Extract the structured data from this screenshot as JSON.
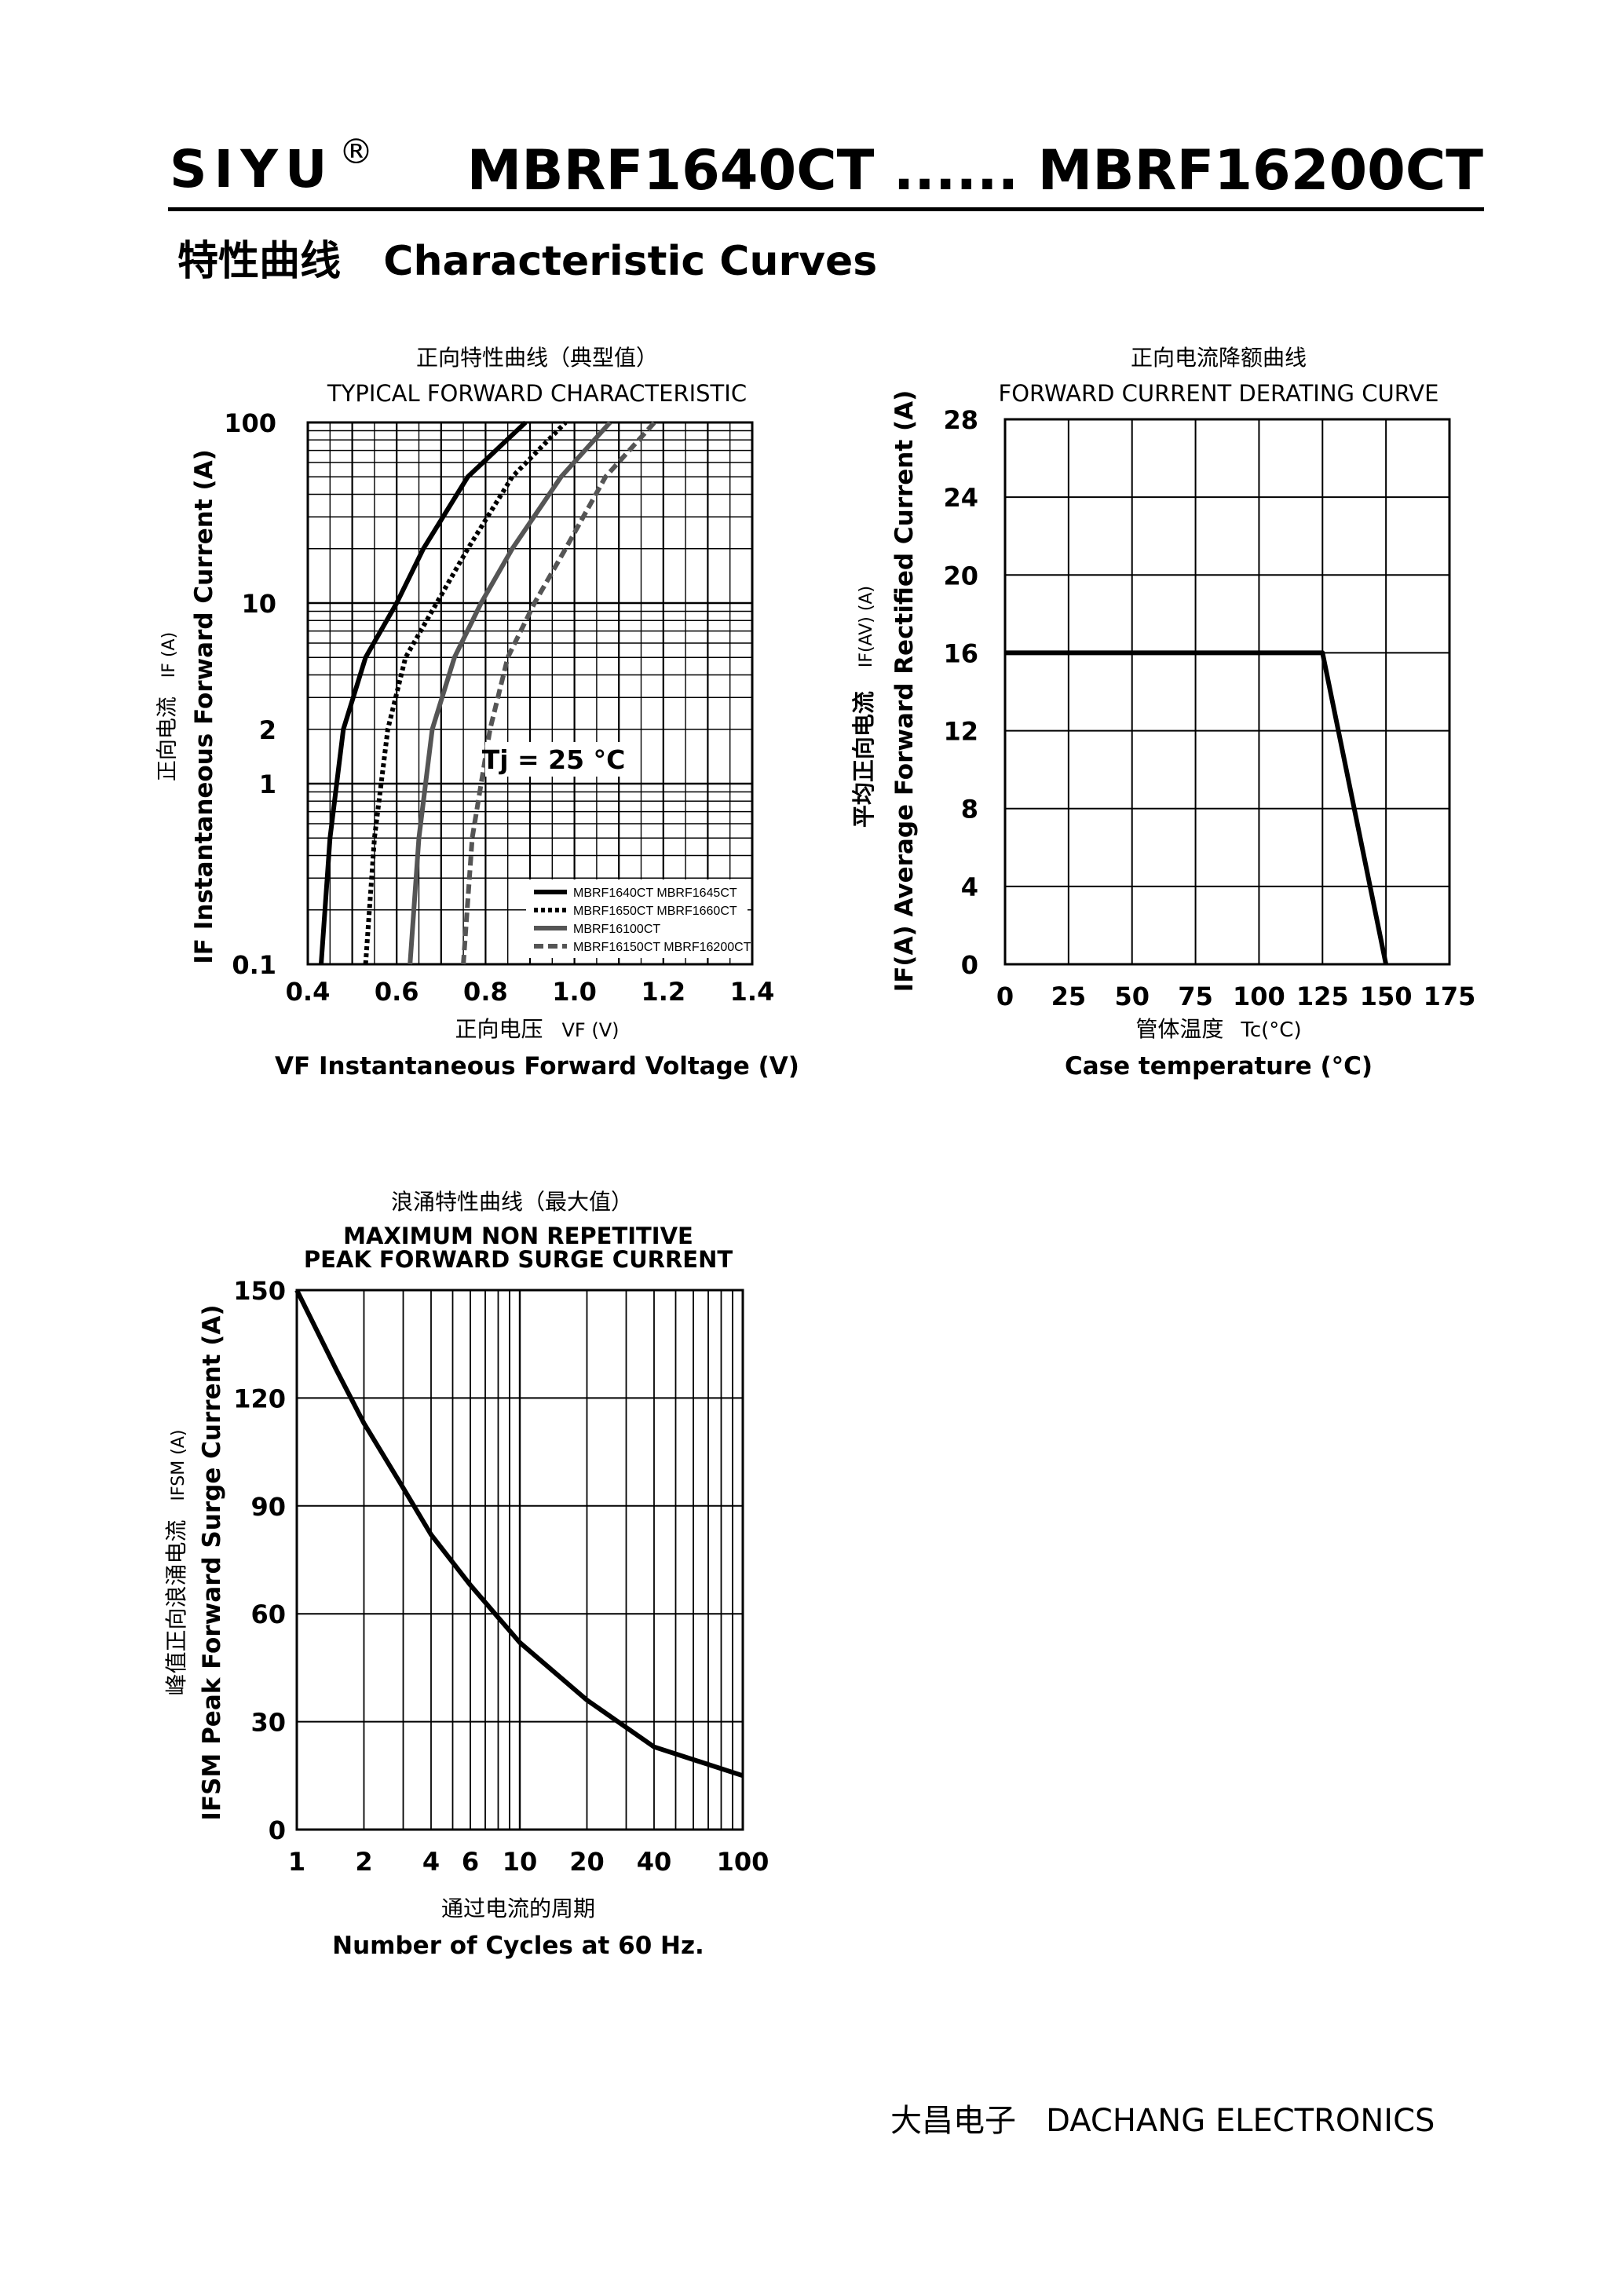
{
  "header": {
    "brand": "SIYU",
    "registered_mark": "®",
    "part_numbers": "MBRF1640CT ...... MBRF16200CT"
  },
  "section_title": "特性曲线   Characteristic Curves",
  "footer": "大昌电子   DACHANG ELECTRONICS",
  "chart_data": [
    {
      "id": "forward",
      "type": "line",
      "title_cn": "正向特性曲线（典型值）",
      "title": "TYPICAL FORWARD CHARACTERISTIC",
      "annotation": "Tj = 25 °C",
      "x_axis": {
        "label_cn": "正向电压",
        "label_sym": "VF (V)",
        "label": "VF  Instantaneous Forward Voltage (V)",
        "range": [
          0.4,
          1.4
        ],
        "ticks": [
          "0.4",
          "0.6",
          "0.8",
          "1.0",
          "1.2",
          "1.4"
        ]
      },
      "y_axis": {
        "label_cn": "正向电流",
        "label_sym": "IF (A)",
        "label": "IF Instantaneous Forward Current (A)",
        "scale": "log",
        "range": [
          0.1,
          100
        ],
        "ticks": [
          "0.1",
          "1",
          "2",
          "10",
          "100"
        ]
      },
      "series": [
        {
          "name": "MBRF1640CT MBRF1645CT",
          "style": "solid",
          "color": "#000000",
          "points": [
            [
              0.43,
              0.1
            ],
            [
              0.45,
              0.5
            ],
            [
              0.48,
              2
            ],
            [
              0.53,
              5
            ],
            [
              0.6,
              10
            ],
            [
              0.66,
              20
            ],
            [
              0.76,
              50
            ],
            [
              0.89,
              100
            ]
          ]
        },
        {
          "name": "MBRF1650CT MBRF1660CT",
          "style": "dotted",
          "color": "#000000",
          "points": [
            [
              0.53,
              0.1
            ],
            [
              0.55,
              0.5
            ],
            [
              0.58,
              2
            ],
            [
              0.62,
              5
            ],
            [
              0.69,
              10
            ],
            [
              0.76,
              20
            ],
            [
              0.86,
              50
            ],
            [
              0.98,
              100
            ]
          ]
        },
        {
          "name": "MBRF16100CT",
          "style": "solid",
          "color": "#555555",
          "points": [
            [
              0.63,
              0.1
            ],
            [
              0.65,
              0.5
            ],
            [
              0.68,
              2
            ],
            [
              0.73,
              5
            ],
            [
              0.79,
              10
            ],
            [
              0.86,
              20
            ],
            [
              0.97,
              50
            ],
            [
              1.08,
              100
            ]
          ]
        },
        {
          "name": "MBRF16150CT MBRF16200CT",
          "style": "dashed",
          "color": "#555555",
          "points": [
            [
              0.75,
              0.1
            ],
            [
              0.77,
              0.5
            ],
            [
              0.81,
              2
            ],
            [
              0.85,
              5
            ],
            [
              0.91,
              10
            ],
            [
              0.98,
              20
            ],
            [
              1.07,
              50
            ],
            [
              1.18,
              100
            ]
          ]
        }
      ]
    },
    {
      "id": "derating",
      "type": "line",
      "title_cn": "正向电流降额曲线",
      "title": "FORWARD CURRENT DERATING CURVE",
      "x_axis": {
        "label_cn": "管体温度",
        "label_sym": "Tc(°C)",
        "label": "Case temperature (°C)",
        "range": [
          0,
          175
        ],
        "ticks": [
          "0",
          "25",
          "50",
          "75",
          "100",
          "125",
          "150",
          "175"
        ]
      },
      "y_axis": {
        "label_cn": "平均正向电流",
        "label_sym": "IF(AV) (A)",
        "label": "IF(A)  Average Forward Rectified Current (A)",
        "range": [
          0,
          28
        ],
        "ticks": [
          "0",
          "4",
          "8",
          "12",
          "16",
          "20",
          "24",
          "28"
        ]
      },
      "series": [
        {
          "points": [
            [
              0,
              16
            ],
            [
              125,
              16
            ],
            [
              150,
              0
            ]
          ]
        }
      ]
    },
    {
      "id": "surge",
      "type": "line",
      "title_cn": "浪涌特性曲线（最大值）",
      "title_line1": "MAXIMUM NON REPETITIVE",
      "title_line2": "PEAK FORWARD SURGE CURRENT",
      "x_axis": {
        "label_cn": "通过电流的周期",
        "label": "Number  of  Cycles at 60 Hz.",
        "scale": "log",
        "range": [
          1,
          100
        ],
        "ticks": [
          "1",
          "2",
          "4",
          "6",
          "10",
          "20",
          "40",
          "100"
        ]
      },
      "y_axis": {
        "label_cn": "峰值正向浪涌电流",
        "label_sym": "IFSM (A)",
        "label": "IFSM Peak Forward Surge Current (A)",
        "range": [
          0,
          150
        ],
        "ticks": [
          "0",
          "30",
          "60",
          "90",
          "120",
          "150"
        ]
      },
      "series": [
        {
          "points": [
            [
              1,
              150
            ],
            [
              1.5,
              128
            ],
            [
              2,
              113
            ],
            [
              3,
              95
            ],
            [
              4,
              82
            ],
            [
              6,
              68
            ],
            [
              10,
              52
            ],
            [
              20,
              36
            ],
            [
              40,
              23
            ],
            [
              100,
              15
            ]
          ]
        }
      ]
    }
  ]
}
